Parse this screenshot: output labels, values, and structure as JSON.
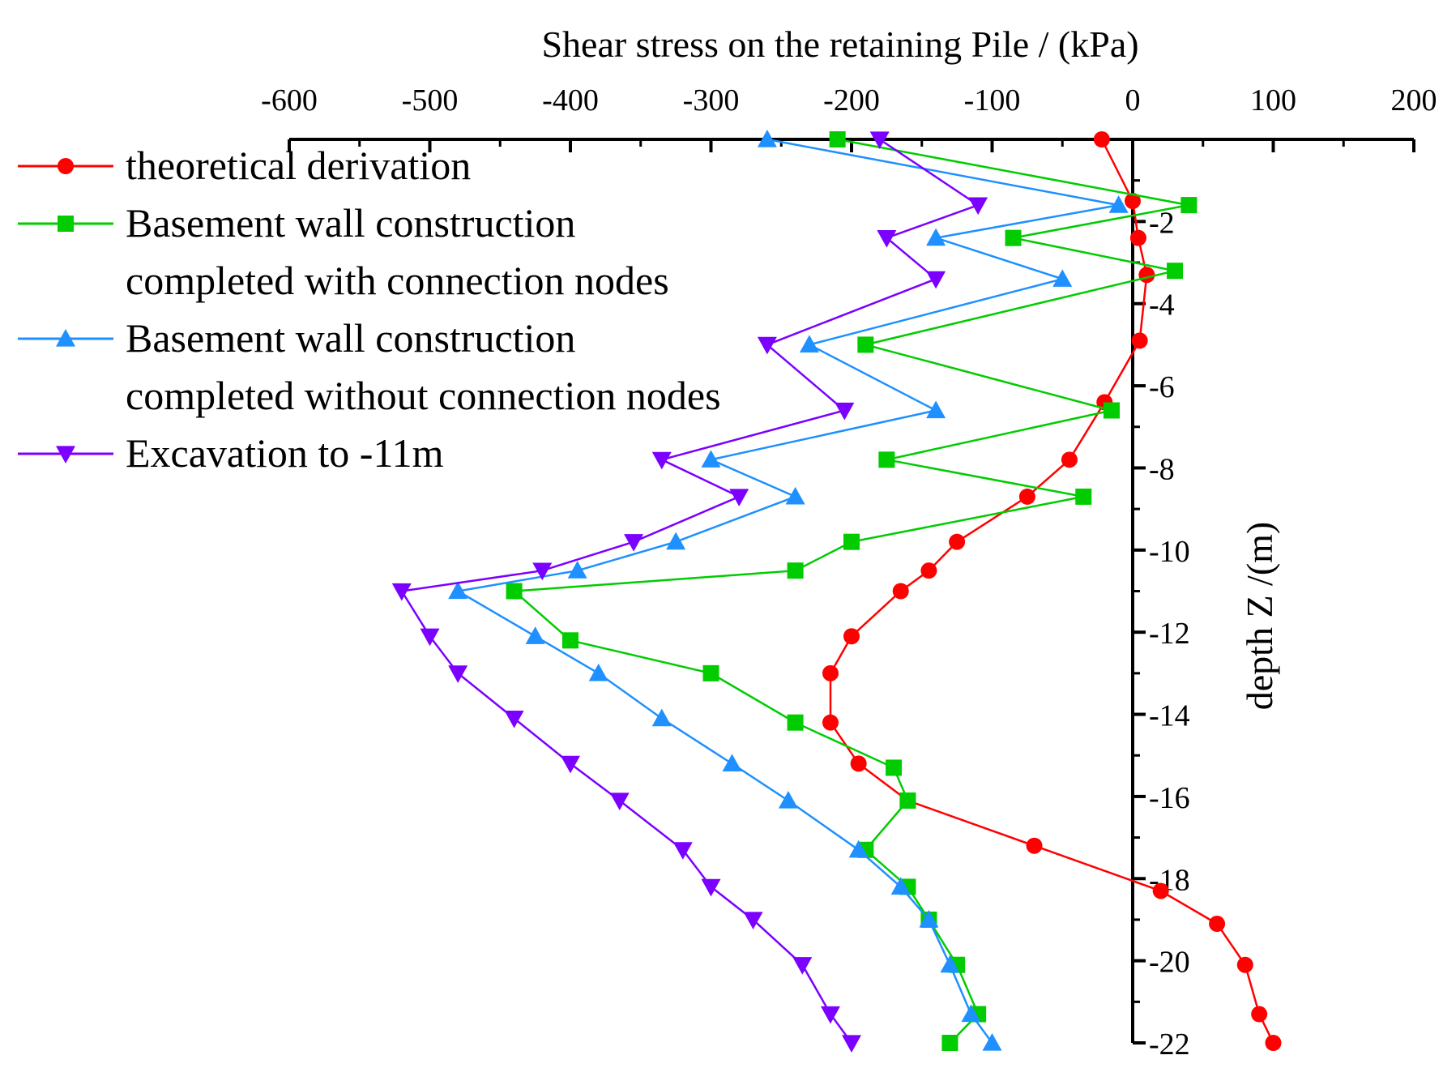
{
  "chart_data": {
    "type": "line",
    "title": "",
    "xlabel": "Shear stress on the retaining Pile / (kPa)",
    "ylabel": "depth Z /(m)",
    "xlim": [
      -600,
      200
    ],
    "ylim": [
      -22,
      0
    ],
    "x_ticks": [
      -600,
      -500,
      -400,
      -300,
      -200,
      -100,
      0,
      100,
      200
    ],
    "x_tick_labels": [
      "-600",
      "-500",
      "-400",
      "-300",
      "-200",
      "-100",
      "0",
      "100",
      "200"
    ],
    "y_ticks": [
      -2,
      -4,
      -6,
      -8,
      -10,
      -12,
      -14,
      -16,
      -18,
      -20,
      -22
    ],
    "y_tick_labels": [
      "-2",
      "-4",
      "-6",
      "-8",
      "-10",
      "-12",
      "-14",
      "-16",
      "-18",
      "-20",
      "-22"
    ],
    "grid": false,
    "legend_position": "top-left",
    "series": [
      {
        "name": "theoretical derivation",
        "legend_lines": [
          "theoretical derivation"
        ],
        "color": "#ff0000",
        "marker": "circle",
        "points": [
          [
            -22,
            0
          ],
          [
            0,
            -1.5
          ],
          [
            4,
            -2.4
          ],
          [
            10,
            -3.3
          ],
          [
            5,
            -4.9
          ],
          [
            -20,
            -6.4
          ],
          [
            -45,
            -7.8
          ],
          [
            -75,
            -8.7
          ],
          [
            -125,
            -9.8
          ],
          [
            -145,
            -10.5
          ],
          [
            -165,
            -11.0
          ],
          [
            -200,
            -12.1
          ],
          [
            -215,
            -13.0
          ],
          [
            -215,
            -14.2
          ],
          [
            -195,
            -15.2
          ],
          [
            -160,
            -16.1
          ],
          [
            -70,
            -17.2
          ],
          [
            20,
            -18.3
          ],
          [
            60,
            -19.1
          ],
          [
            80,
            -20.1
          ],
          [
            90,
            -21.3
          ],
          [
            100,
            -22.0
          ]
        ]
      },
      {
        "name": "Basement wall construction completed with connection nodes",
        "legend_lines": [
          "Basement wall construction",
          "completed with connection nodes"
        ],
        "color": "#00cc00",
        "marker": "square",
        "points": [
          [
            -210,
            0
          ],
          [
            40,
            -1.6
          ],
          [
            -85,
            -2.4
          ],
          [
            30,
            -3.2
          ],
          [
            -190,
            -5.0
          ],
          [
            -15,
            -6.6
          ],
          [
            -175,
            -7.8
          ],
          [
            -35,
            -8.7
          ],
          [
            -200,
            -9.8
          ],
          [
            -240,
            -10.5
          ],
          [
            -440,
            -11.0
          ],
          [
            -400,
            -12.2
          ],
          [
            -300,
            -13.0
          ],
          [
            -240,
            -14.2
          ],
          [
            -170,
            -15.3
          ],
          [
            -160,
            -16.1
          ],
          [
            -190,
            -17.3
          ],
          [
            -160,
            -18.2
          ],
          [
            -145,
            -19.0
          ],
          [
            -125,
            -20.1
          ],
          [
            -110,
            -21.3
          ],
          [
            -130,
            -22.0
          ]
        ]
      },
      {
        "name": "Basement wall construction completed without connection nodes",
        "legend_lines": [
          "Basement wall construction",
          "completed without connection nodes"
        ],
        "color": "#1e90ff",
        "marker": "triangle-up",
        "points": [
          [
            -260,
            0
          ],
          [
            -10,
            -1.6
          ],
          [
            -140,
            -2.4
          ],
          [
            -50,
            -3.4
          ],
          [
            -230,
            -5.0
          ],
          [
            -140,
            -6.6
          ],
          [
            -300,
            -7.8
          ],
          [
            -240,
            -8.7
          ],
          [
            -325,
            -9.8
          ],
          [
            -395,
            -10.5
          ],
          [
            -480,
            -11.0
          ],
          [
            -425,
            -12.1
          ],
          [
            -380,
            -13.0
          ],
          [
            -335,
            -14.1
          ],
          [
            -285,
            -15.2
          ],
          [
            -245,
            -16.1
          ],
          [
            -195,
            -17.3
          ],
          [
            -165,
            -18.2
          ],
          [
            -145,
            -19.0
          ],
          [
            -130,
            -20.1
          ],
          [
            -115,
            -21.3
          ],
          [
            -100,
            -22.0
          ]
        ]
      },
      {
        "name": "Excavation to -11m",
        "legend_lines": [
          "Excavation to -11m"
        ],
        "color": "#7b00ff",
        "marker": "triangle-down",
        "points": [
          [
            -180,
            0
          ],
          [
            -110,
            -1.6
          ],
          [
            -175,
            -2.4
          ],
          [
            -140,
            -3.4
          ],
          [
            -260,
            -5.0
          ],
          [
            -205,
            -6.6
          ],
          [
            -335,
            -7.8
          ],
          [
            -280,
            -8.7
          ],
          [
            -355,
            -9.8
          ],
          [
            -420,
            -10.5
          ],
          [
            -520,
            -11.0
          ],
          [
            -500,
            -12.1
          ],
          [
            -480,
            -13.0
          ],
          [
            -440,
            -14.1
          ],
          [
            -400,
            -15.2
          ],
          [
            -365,
            -16.1
          ],
          [
            -320,
            -17.3
          ],
          [
            -300,
            -18.2
          ],
          [
            -270,
            -19.0
          ],
          [
            -235,
            -20.1
          ],
          [
            -215,
            -21.3
          ],
          [
            -200,
            -22.0
          ]
        ]
      }
    ]
  }
}
